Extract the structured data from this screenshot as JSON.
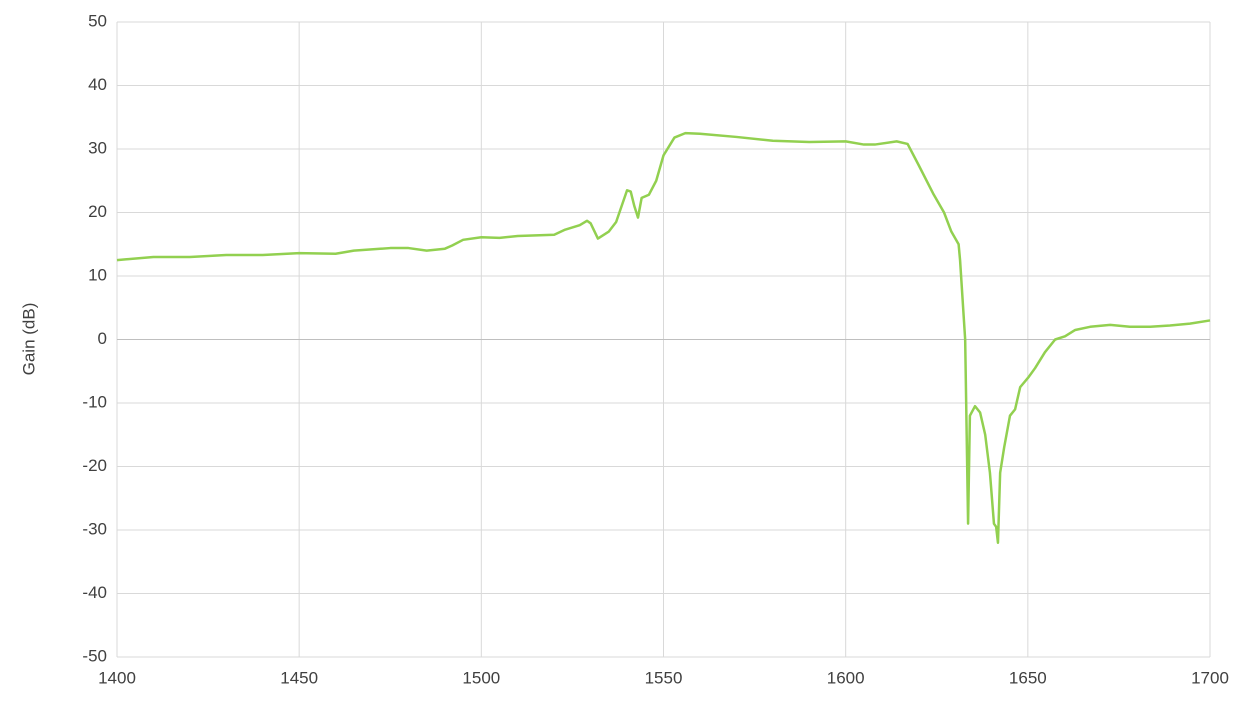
{
  "chart_data": {
    "type": "line",
    "y_label": "Gain (dB)",
    "xlim": [
      1400,
      1700
    ],
    "xticks": [
      1400,
      1450,
      1500,
      1550,
      1600,
      1650,
      1700
    ],
    "ylim": [
      -50,
      50
    ],
    "yticks": [
      -50,
      -40,
      -30,
      -20,
      -10,
      0,
      10,
      20,
      30,
      40,
      50
    ],
    "grid": true,
    "series": [
      {
        "color": "#92d050",
        "x": [
          1400,
          1410,
          1420,
          1430,
          1440,
          1450,
          1460,
          1465,
          1475,
          1480,
          1485,
          1490,
          1492,
          1495,
          1500,
          1505,
          1510,
          1515,
          1520,
          1523,
          1527,
          1529,
          1530,
          1532,
          1535,
          1537,
          1540,
          1541,
          1542,
          1543,
          1544,
          1546,
          1548,
          1550,
          1553,
          1556,
          1560,
          1570,
          1580,
          1590,
          1600,
          1605,
          1608,
          1614,
          1617,
          1620,
          1624,
          1627,
          1629,
          1631,
          1631.4,
          1632.8,
          1633.6,
          1634.1,
          1635.5,
          1636.9,
          1638.3,
          1639.6,
          1640.7,
          1641.3,
          1641.8,
          1642.4,
          1643.5,
          1645.1,
          1646.5,
          1647.9,
          1650.1,
          1652,
          1654.7,
          1657.5,
          1660.2,
          1663,
          1667.1,
          1672.6,
          1678,
          1683.6,
          1689,
          1694.5,
          1700
        ],
        "values": [
          12.5,
          13.0,
          13.0,
          13.3,
          13.3,
          13.6,
          13.5,
          14.0,
          14.4,
          14.4,
          14.0,
          14.3,
          14.8,
          15.7,
          16.1,
          16.0,
          16.3,
          16.4,
          16.5,
          17.3,
          18.0,
          18.7,
          18.3,
          15.9,
          17.0,
          18.5,
          23.5,
          23.3,
          21.0,
          19.2,
          22.3,
          22.8,
          25,
          29,
          31.8,
          32.5,
          32.4,
          31.9,
          31.3,
          31.1,
          31.2,
          30.7,
          30.7,
          31.2,
          30.8,
          27.5,
          23,
          20,
          17,
          15,
          12.5,
          0,
          -29,
          -12,
          -10.5,
          -11.5,
          -15,
          -21,
          -29,
          -29.5,
          -32,
          -21,
          -17,
          -12,
          -11,
          -7.5,
          -6,
          -4.5,
          -2,
          0,
          0.5,
          1.5,
          2,
          2.3,
          2,
          2,
          2.2,
          2.5,
          3
        ]
      }
    ]
  }
}
